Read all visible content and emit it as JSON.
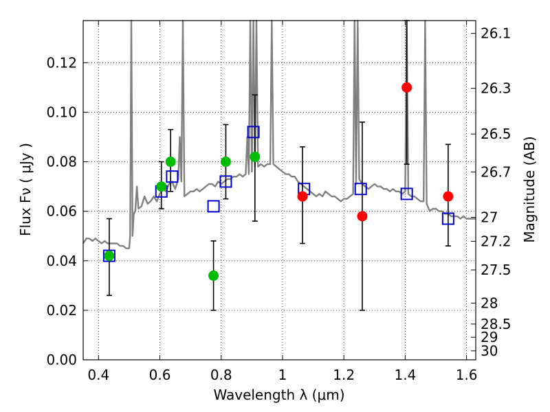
{
  "chart_data": {
    "type": "scatter",
    "xlabel": "Wavelength  λ (μm)",
    "ylabel": "Flux  Fν  ( μJy )",
    "y2label": "Magnitude (AB)",
    "xlim": [
      0.35,
      1.63
    ],
    "ylim": [
      0.0,
      0.137
    ],
    "x_ticks": [
      0.4,
      0.6,
      0.8,
      1.0,
      1.2,
      1.4,
      1.6
    ],
    "x_tick_labels": [
      "0.4",
      "0.6",
      "0.8",
      "1",
      "1.2",
      "1.4",
      "1.6"
    ],
    "y_ticks": [
      0.0,
      0.02,
      0.04,
      0.06,
      0.08,
      0.1,
      0.12
    ],
    "y_tick_labels": [
      "0.00",
      "0.02",
      "0.04",
      "0.06",
      "0.08",
      "0.10",
      "0.12"
    ],
    "y2_ticks": [
      {
        "mag": 26.1,
        "label": "26.1"
      },
      {
        "mag": 26.3,
        "label": "26.3"
      },
      {
        "mag": 26.5,
        "label": "26.5"
      },
      {
        "mag": 26.7,
        "label": "26.7"
      },
      {
        "mag": 27.0,
        "label": "27"
      },
      {
        "mag": 27.2,
        "label": "27.2"
      },
      {
        "mag": 27.5,
        "label": "27.5"
      },
      {
        "mag": 28.0,
        "label": "28"
      },
      {
        "mag": 28.5,
        "label": "28.5"
      },
      {
        "mag": 29.0,
        "label": "29"
      },
      {
        "mag": 30.0,
        "label": "30"
      }
    ],
    "grid": true,
    "colors": {
      "spectrum": "#808080",
      "model": "#0000cc",
      "green": "#00bb00",
      "red": "#ff0000",
      "errorbar": "#000000"
    },
    "spectrum": [
      [
        0.35,
        0.047
      ],
      [
        0.36,
        0.049
      ],
      [
        0.37,
        0.049
      ],
      [
        0.38,
        0.048
      ],
      [
        0.39,
        0.049
      ],
      [
        0.4,
        0.048
      ],
      [
        0.41,
        0.047
      ],
      [
        0.42,
        0.048
      ],
      [
        0.43,
        0.047
      ],
      [
        0.44,
        0.047
      ],
      [
        0.45,
        0.047
      ],
      [
        0.46,
        0.047
      ],
      [
        0.47,
        0.046
      ],
      [
        0.48,
        0.046
      ],
      [
        0.49,
        0.045
      ],
      [
        0.5,
        0.045
      ],
      [
        0.503,
        0.05
      ],
      [
        0.507,
        0.14
      ],
      [
        0.511,
        0.05
      ],
      [
        0.515,
        0.059
      ],
      [
        0.52,
        0.06
      ],
      [
        0.525,
        0.07
      ],
      [
        0.53,
        0.061
      ],
      [
        0.54,
        0.062
      ],
      [
        0.55,
        0.066
      ],
      [
        0.56,
        0.063
      ],
      [
        0.57,
        0.064
      ],
      [
        0.58,
        0.066
      ],
      [
        0.59,
        0.064
      ],
      [
        0.6,
        0.067
      ],
      [
        0.61,
        0.069
      ],
      [
        0.62,
        0.068
      ],
      [
        0.63,
        0.071
      ],
      [
        0.64,
        0.072
      ],
      [
        0.65,
        0.069
      ],
      [
        0.66,
        0.073
      ],
      [
        0.665,
        0.09
      ],
      [
        0.67,
        0.072
      ],
      [
        0.675,
        0.14
      ],
      [
        0.68,
        0.066
      ],
      [
        0.69,
        0.067
      ],
      [
        0.7,
        0.068
      ],
      [
        0.71,
        0.068
      ],
      [
        0.72,
        0.069
      ],
      [
        0.73,
        0.068
      ],
      [
        0.74,
        0.069
      ],
      [
        0.75,
        0.07
      ],
      [
        0.76,
        0.071
      ],
      [
        0.77,
        0.071
      ],
      [
        0.78,
        0.07
      ],
      [
        0.79,
        0.072
      ],
      [
        0.8,
        0.071
      ],
      [
        0.81,
        0.072
      ],
      [
        0.82,
        0.073
      ],
      [
        0.83,
        0.073
      ],
      [
        0.84,
        0.074
      ],
      [
        0.85,
        0.074
      ],
      [
        0.86,
        0.075
      ],
      [
        0.87,
        0.074
      ],
      [
        0.88,
        0.075
      ],
      [
        0.885,
        0.09
      ],
      [
        0.89,
        0.075
      ],
      [
        0.895,
        0.14
      ],
      [
        0.9,
        0.076
      ],
      [
        0.905,
        0.14
      ],
      [
        0.91,
        0.078
      ],
      [
        0.915,
        0.14
      ],
      [
        0.92,
        0.078
      ],
      [
        0.93,
        0.079
      ],
      [
        0.94,
        0.078
      ],
      [
        0.95,
        0.079
      ],
      [
        0.96,
        0.079
      ],
      [
        0.965,
        0.14
      ],
      [
        0.97,
        0.079
      ],
      [
        0.98,
        0.078
      ],
      [
        0.99,
        0.077
      ],
      [
        1.0,
        0.076
      ],
      [
        1.01,
        0.075
      ],
      [
        1.02,
        0.075
      ],
      [
        1.03,
        0.074
      ],
      [
        1.04,
        0.074
      ],
      [
        1.05,
        0.072
      ],
      [
        1.06,
        0.071
      ],
      [
        1.07,
        0.07
      ],
      [
        1.08,
        0.069
      ],
      [
        1.09,
        0.068
      ],
      [
        1.1,
        0.067
      ],
      [
        1.11,
        0.066
      ],
      [
        1.12,
        0.067
      ],
      [
        1.13,
        0.066
      ],
      [
        1.14,
        0.068
      ],
      [
        1.15,
        0.067
      ],
      [
        1.16,
        0.066
      ],
      [
        1.17,
        0.066
      ],
      [
        1.18,
        0.065
      ],
      [
        1.19,
        0.064
      ],
      [
        1.2,
        0.065
      ],
      [
        1.21,
        0.065
      ],
      [
        1.22,
        0.066
      ],
      [
        1.23,
        0.067
      ],
      [
        1.235,
        0.14
      ],
      [
        1.24,
        0.071
      ],
      [
        1.245,
        0.14
      ],
      [
        1.25,
        0.073
      ],
      [
        1.26,
        0.071
      ],
      [
        1.27,
        0.07
      ],
      [
        1.28,
        0.069
      ],
      [
        1.29,
        0.07
      ],
      [
        1.3,
        0.071
      ],
      [
        1.31,
        0.07
      ],
      [
        1.32,
        0.07
      ],
      [
        1.33,
        0.069
      ],
      [
        1.34,
        0.069
      ],
      [
        1.35,
        0.068
      ],
      [
        1.36,
        0.069
      ],
      [
        1.37,
        0.068
      ],
      [
        1.38,
        0.068
      ],
      [
        1.39,
        0.067
      ],
      [
        1.4,
        0.068
      ],
      [
        1.405,
        0.14
      ],
      [
        1.41,
        0.067
      ],
      [
        1.42,
        0.066
      ],
      [
        1.43,
        0.066
      ],
      [
        1.44,
        0.065
      ],
      [
        1.45,
        0.064
      ],
      [
        1.46,
        0.064
      ],
      [
        1.465,
        0.14
      ],
      [
        1.47,
        0.063
      ],
      [
        1.48,
        0.06
      ],
      [
        1.49,
        0.061
      ],
      [
        1.5,
        0.061
      ],
      [
        1.51,
        0.06
      ],
      [
        1.52,
        0.06
      ],
      [
        1.53,
        0.059
      ],
      [
        1.54,
        0.059
      ],
      [
        1.55,
        0.058
      ],
      [
        1.56,
        0.058
      ],
      [
        1.57,
        0.058
      ],
      [
        1.58,
        0.057
      ],
      [
        1.59,
        0.058
      ],
      [
        1.6,
        0.057
      ],
      [
        1.61,
        0.057
      ],
      [
        1.62,
        0.057
      ],
      [
        1.63,
        0.057
      ]
    ],
    "model_squares": [
      {
        "x": 0.435,
        "y": 0.042
      },
      {
        "x": 0.605,
        "y": 0.068
      },
      {
        "x": 0.64,
        "y": 0.074
      },
      {
        "x": 0.775,
        "y": 0.062
      },
      {
        "x": 0.815,
        "y": 0.072
      },
      {
        "x": 0.905,
        "y": 0.092
      },
      {
        "x": 1.07,
        "y": 0.069
      },
      {
        "x": 1.255,
        "y": 0.069
      },
      {
        "x": 1.405,
        "y": 0.067
      },
      {
        "x": 1.54,
        "y": 0.057
      }
    ],
    "green_points": [
      {
        "x": 0.435,
        "y": 0.042,
        "err": [
          0.026,
          0.057
        ]
      },
      {
        "x": 0.605,
        "y": 0.07,
        "err": [
          0.061,
          0.08
        ]
      },
      {
        "x": 0.635,
        "y": 0.08,
        "err": [
          0.068,
          0.093
        ]
      },
      {
        "x": 0.775,
        "y": 0.034,
        "err": [
          0.02,
          0.048
        ]
      },
      {
        "x": 0.815,
        "y": 0.08,
        "err": [
          0.065,
          0.095
        ]
      },
      {
        "x": 0.91,
        "y": 0.082,
        "err": [
          0.056,
          0.107
        ]
      }
    ],
    "red_points": [
      {
        "x": 1.065,
        "y": 0.066,
        "err": [
          0.047,
          0.086
        ]
      },
      {
        "x": 1.26,
        "y": 0.058,
        "err": [
          0.02,
          0.096
        ]
      },
      {
        "x": 1.405,
        "y": 0.11,
        "err": [
          0.079,
          0.137
        ]
      },
      {
        "x": 1.54,
        "y": 0.066,
        "err": [
          0.046,
          0.087
        ]
      }
    ]
  }
}
